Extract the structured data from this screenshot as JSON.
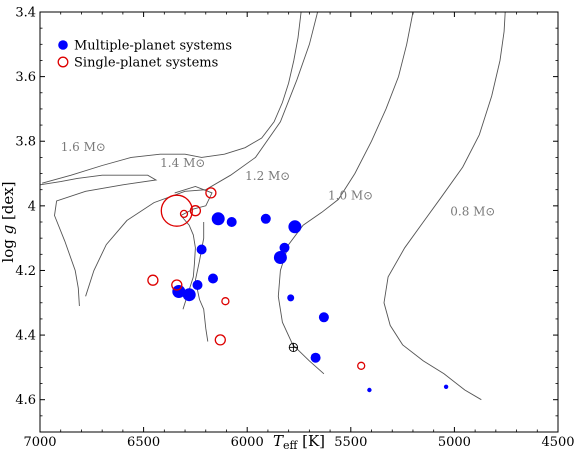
{
  "chart_data": {
    "type": "scatter",
    "xlabel": "T_eff [K]",
    "ylabel": "log g [dex]",
    "xlim": [
      7000,
      4500
    ],
    "ylim": [
      3.4,
      4.7
    ],
    "x_reversed": true,
    "y_reversed": true,
    "xticks": [
      7000,
      6500,
      6000,
      5500,
      5000,
      4500
    ],
    "yticks": [
      3.4,
      3.6,
      3.8,
      4.0,
      4.2,
      4.4,
      4.6
    ],
    "ytick_labels": [
      "3.4",
      "3.6",
      "3.8",
      "4",
      "4.2",
      "4.4",
      "4.6"
    ],
    "legend_position": "top-left",
    "series": [
      {
        "name": "Multiple-planet systems",
        "marker": "filled-circle",
        "color": "#0000ff",
        "points": [
          {
            "x": 6330,
            "y": 4.265,
            "size": 3
          },
          {
            "x": 6280,
            "y": 4.275,
            "size": 3
          },
          {
            "x": 6240,
            "y": 4.245,
            "size": 2
          },
          {
            "x": 6220,
            "y": 4.135,
            "size": 2
          },
          {
            "x": 6165,
            "y": 4.225,
            "size": 2
          },
          {
            "x": 6140,
            "y": 4.04,
            "size": 3
          },
          {
            "x": 6075,
            "y": 4.05,
            "size": 2
          },
          {
            "x": 5910,
            "y": 4.04,
            "size": 2
          },
          {
            "x": 5840,
            "y": 4.16,
            "size": 3
          },
          {
            "x": 5820,
            "y": 4.13,
            "size": 2
          },
          {
            "x": 5770,
            "y": 4.065,
            "size": 3
          },
          {
            "x": 5790,
            "y": 4.285,
            "size": 1
          },
          {
            "x": 5630,
            "y": 4.345,
            "size": 2
          },
          {
            "x": 5670,
            "y": 4.47,
            "size": 2
          },
          {
            "x": 5410,
            "y": 4.57,
            "size": 0
          },
          {
            "x": 5040,
            "y": 4.56,
            "size": 0
          }
        ]
      },
      {
        "name": "Single-planet systems",
        "marker": "open-circle",
        "color": "#dd0000",
        "points": [
          {
            "x": 6340,
            "y": 4.015,
            "size": 5
          },
          {
            "x": 6305,
            "y": 4.025,
            "size": 1
          },
          {
            "x": 6250,
            "y": 4.015,
            "size": 2
          },
          {
            "x": 6175,
            "y": 3.96,
            "size": 2
          },
          {
            "x": 6455,
            "y": 4.23,
            "size": 2
          },
          {
            "x": 6340,
            "y": 4.245,
            "size": 2
          },
          {
            "x": 6105,
            "y": 4.295,
            "size": 1
          },
          {
            "x": 6130,
            "y": 4.415,
            "size": 2
          },
          {
            "x": 5450,
            "y": 4.495,
            "size": 1
          }
        ]
      }
    ],
    "sun_symbol": {
      "x": 5777,
      "y": 4.438
    },
    "tracks": [
      {
        "label": "1.6 M⊙",
        "label_at": {
          "x": 6900,
          "y": 3.83
        },
        "points": [
          [
            7000,
            3.935
          ],
          [
            6950,
            3.93
          ],
          [
            6900,
            3.925
          ],
          [
            6820,
            3.915
          ],
          [
            6700,
            3.905
          ],
          [
            6580,
            3.905
          ],
          [
            6480,
            3.905
          ],
          [
            6440,
            3.92
          ],
          [
            6600,
            3.935
          ],
          [
            6780,
            3.955
          ],
          [
            6920,
            3.985
          ],
          [
            6930,
            4.03
          ],
          [
            6880,
            4.11
          ],
          [
            6830,
            4.2
          ],
          [
            6815,
            4.255
          ],
          [
            6810,
            4.31
          ]
        ]
      },
      {
        "label": "1.4 M⊙",
        "label_at": {
          "x": 6420,
          "y": 3.88
        },
        "points": [
          [
            6990,
            3.93
          ],
          [
            6850,
            3.905
          ],
          [
            6700,
            3.875
          ],
          [
            6560,
            3.85
          ],
          [
            6420,
            3.84
          ],
          [
            6300,
            3.84
          ],
          [
            6220,
            3.85
          ],
          [
            6110,
            3.84
          ],
          [
            6010,
            3.82
          ],
          [
            5930,
            3.79
          ],
          [
            5870,
            3.74
          ],
          [
            5830,
            3.68
          ],
          [
            5800,
            3.62
          ],
          [
            5775,
            3.55
          ],
          [
            5755,
            3.48
          ],
          [
            5740,
            3.4
          ]
        ],
        "loop": [
          [
            6350,
            3.96
          ],
          [
            6250,
            3.94
          ],
          [
            6170,
            3.96
          ],
          [
            6200,
            4.0
          ],
          [
            6260,
            4.01
          ],
          [
            6320,
            4.03
          ],
          [
            6280,
            4.06
          ],
          [
            6260,
            4.09
          ],
          [
            6250,
            4.13
          ],
          [
            6255,
            4.18
          ],
          [
            6260,
            4.22
          ],
          [
            6290,
            4.28
          ],
          [
            6310,
            4.32
          ]
        ]
      },
      {
        "label": "1.2 M⊙",
        "label_at": {
          "x": 6010,
          "y": 3.92
        },
        "points": [
          [
            6780,
            4.28
          ],
          [
            6740,
            4.2
          ],
          [
            6680,
            4.12
          ],
          [
            6580,
            4.045
          ],
          [
            6450,
            3.99
          ],
          [
            6300,
            3.955
          ],
          [
            6200,
            3.95
          ],
          [
            6080,
            3.905
          ],
          [
            5960,
            3.85
          ],
          [
            5840,
            3.74
          ],
          [
            5760,
            3.61
          ],
          [
            5700,
            3.5
          ],
          [
            5660,
            3.4
          ]
        ],
        "loop": [
          [
            6210,
            4.05
          ],
          [
            6210,
            4.1
          ],
          [
            6230,
            4.17
          ],
          [
            6250,
            4.23
          ],
          [
            6230,
            4.29
          ],
          [
            6210,
            4.32
          ],
          [
            6200,
            4.38
          ],
          [
            6190,
            4.42
          ]
        ]
      },
      {
        "label": "1.0 M⊙",
        "label_at": {
          "x": 5610,
          "y": 3.98
        },
        "points": [
          [
            5630,
            4.52
          ],
          [
            5700,
            4.48
          ],
          [
            5780,
            4.43
          ],
          [
            5830,
            4.36
          ],
          [
            5850,
            4.28
          ],
          [
            5840,
            4.2
          ],
          [
            5800,
            4.12
          ],
          [
            5730,
            4.06
          ],
          [
            5640,
            4.02
          ],
          [
            5560,
            3.98
          ],
          [
            5480,
            3.9
          ],
          [
            5400,
            3.8
          ],
          [
            5330,
            3.7
          ],
          [
            5270,
            3.6
          ],
          [
            5230,
            3.5
          ],
          [
            5200,
            3.4
          ]
        ]
      },
      {
        "label": "0.8 M⊙",
        "label_at": {
          "x": 5020,
          "y": 4.03
        },
        "points": [
          [
            4870,
            4.6
          ],
          [
            4950,
            4.57
          ],
          [
            5050,
            4.52
          ],
          [
            5150,
            4.48
          ],
          [
            5250,
            4.43
          ],
          [
            5310,
            4.37
          ],
          [
            5340,
            4.3
          ],
          [
            5320,
            4.22
          ],
          [
            5240,
            4.13
          ],
          [
            5150,
            4.05
          ],
          [
            5060,
            3.97
          ],
          [
            4960,
            3.88
          ],
          [
            4880,
            3.78
          ],
          [
            4820,
            3.66
          ],
          [
            4780,
            3.55
          ],
          [
            4760,
            3.46
          ],
          [
            4755,
            3.4
          ]
        ]
      }
    ]
  }
}
